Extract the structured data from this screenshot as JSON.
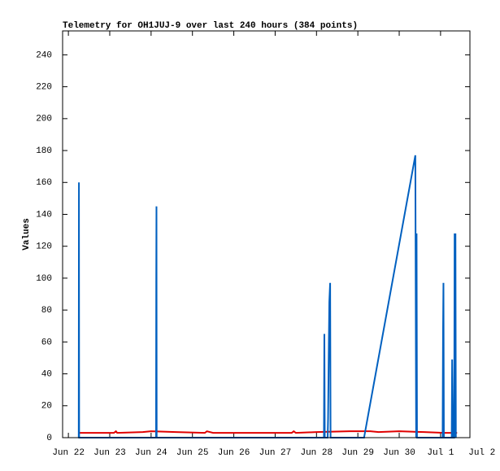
{
  "chart_data": {
    "type": "line",
    "title": "Telemetry for OH1JUJ-9 over last 240 hours (384 points)",
    "y_label": "Values",
    "xlim": [
      -0.14,
      9.71
    ],
    "xticks": [
      {
        "value": 0,
        "label": "Jun 22"
      },
      {
        "value": 1,
        "label": "Jun 23"
      },
      {
        "value": 2,
        "label": "Jun 24"
      },
      {
        "value": 3,
        "label": "Jun 25"
      },
      {
        "value": 4,
        "label": "Jun 26"
      },
      {
        "value": 5,
        "label": "Jun 27"
      },
      {
        "value": 6,
        "label": "Jun 28"
      },
      {
        "value": 7,
        "label": "Jun 29"
      },
      {
        "value": 8,
        "label": "Jun 30"
      },
      {
        "value": 9,
        "label": "Jul 1"
      },
      {
        "value": 10,
        "label": "Jul 2"
      }
    ],
    "ylim": [
      0,
      255
    ],
    "yticks": [
      0,
      20,
      40,
      60,
      80,
      100,
      120,
      140,
      160,
      180,
      200,
      220,
      240
    ],
    "series": [
      {
        "color": "#e00000",
        "x": [
          0.25,
          1.1,
          1.15,
          1.18,
          1.8,
          2.0,
          2.6,
          3.3,
          3.35,
          3.5,
          5.4,
          5.45,
          5.5,
          6.0,
          6.8,
          7.3,
          7.5,
          8.0,
          8.6,
          9.1,
          9.4
        ],
        "values": [
          3,
          3,
          4,
          3,
          3.5,
          4,
          3.5,
          3,
          4,
          3,
          3,
          4,
          3,
          3.5,
          4,
          4,
          3.5,
          4,
          3.5,
          3,
          3
        ]
      },
      {
        "color": "#0060c0",
        "x": [
          0.25,
          0.255,
          0.26,
          2.12,
          2.125,
          2.13,
          2.135,
          6.18,
          6.19,
          6.2,
          6.27,
          6.28,
          6.29,
          6.3,
          6.31,
          6.33,
          6.34,
          7.15,
          8.39,
          8.41,
          8.42,
          8.43,
          9.05,
          9.06,
          9.07,
          9.08,
          9.27,
          9.28,
          9.29,
          9.3,
          9.33,
          9.34,
          9.35,
          9.36,
          9.37
        ],
        "values": [
          0,
          160,
          0,
          0,
          97,
          145,
          0,
          0,
          65,
          0,
          0,
          12,
          37,
          62,
          85,
          97,
          0,
          0,
          177,
          0,
          128,
          0,
          0,
          65,
          97,
          0,
          0,
          49,
          25,
          0,
          0,
          128,
          80,
          128,
          0
        ]
      }
    ]
  }
}
